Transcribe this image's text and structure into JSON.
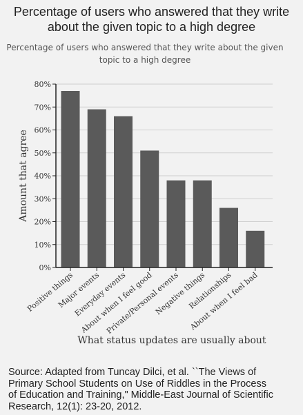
{
  "page": {
    "title_line1": "Percentage of users who answered that they write",
    "title_line2": "about the given topic to a high degree",
    "source_line1": "Source: Adapted from Tuncay Dilci, et al. ``The Views of",
    "source_line2": "Primary School Students on Use of Riddles in the Process",
    "source_line3": "of Education and Training,\" Middle-East Journal of Scientific",
    "source_line4": "Research, 12(1): 23-20, 2012."
  },
  "chart_data": {
    "type": "bar",
    "title_line1": "Percentage of users who answered that they write about the given",
    "title_line2": "topic to a high degree",
    "categories": [
      "Positive things",
      "Major events",
      "Everyday events",
      "About when I feel good",
      "Private/Personal events",
      "Negative things",
      "Relationships",
      "About when I feel bad"
    ],
    "values": [
      77,
      69,
      66,
      51,
      38,
      38,
      26,
      16
    ],
    "xlabel": "What status updates are usually about",
    "ylabel": "Amount that agree",
    "ylim": [
      0,
      80
    ],
    "yticks": [
      "0%",
      "10%",
      "20%",
      "30%",
      "40%",
      "50%",
      "60%",
      "70%",
      "80%"
    ],
    "grid": true,
    "bar_color": "#5a5a5a"
  }
}
